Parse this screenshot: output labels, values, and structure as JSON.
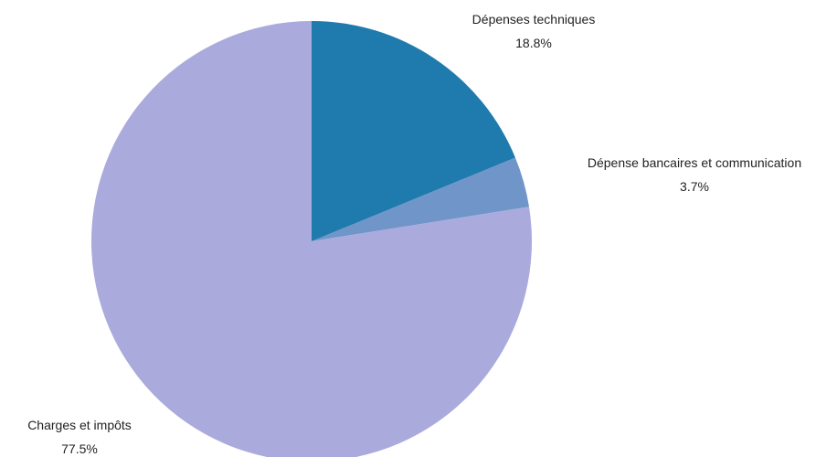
{
  "chart_data": {
    "type": "pie",
    "title": "",
    "slices": [
      {
        "label": "Dépenses techniques",
        "value": 18.8,
        "value_label": "18.8%",
        "color": "#1f7aad"
      },
      {
        "label": "Dépense bancaires et communication",
        "value": 3.7,
        "value_label": "3.7%",
        "color": "#6f95c9"
      },
      {
        "label": "Charges et impôts",
        "value": 77.5,
        "value_label": "77.5%",
        "color": "#aaaadc"
      }
    ],
    "start_angle": "12 o'clock",
    "direction": "clockwise",
    "legend": "none"
  }
}
